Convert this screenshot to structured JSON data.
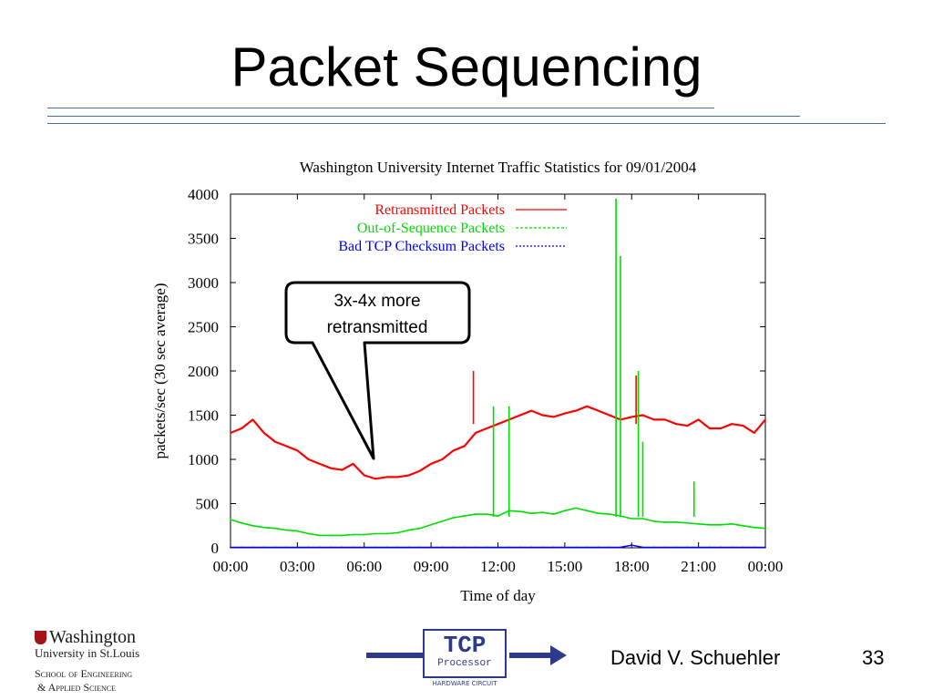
{
  "slide": {
    "title": "Packet Sequencing",
    "author": "David V. Schuehler",
    "page_number": "33"
  },
  "logos": {
    "washington": {
      "name": "Washington",
      "subname": "University in St.Louis",
      "line3": "School of Engineering",
      "line4": "& Applied Science"
    },
    "tcp": {
      "title": "TCP",
      "subtitle": "Processor",
      "caption": "HARDWARE CIRCUIT",
      "color": "#2d3a8c"
    }
  },
  "callout": {
    "line1": "3x-4x more",
    "line2": "retransmitted"
  },
  "chart_data": {
    "type": "line",
    "title": "Washington University Internet Traffic Statistics for 09/01/2004",
    "xlabel": "Time of day",
    "ylabel": "packets/sec (30 sec average)",
    "xlim": [
      0,
      24
    ],
    "ylim": [
      0,
      4000
    ],
    "x_ticks": [
      "00:00",
      "03:00",
      "06:00",
      "09:00",
      "12:00",
      "15:00",
      "18:00",
      "21:00",
      "00:00"
    ],
    "y_ticks": [
      "0",
      "500",
      "1000",
      "1500",
      "2000",
      "2500",
      "3000",
      "3500",
      "4000"
    ],
    "grid": false,
    "legend_position": "top-left",
    "x": [
      0,
      0.5,
      1,
      1.5,
      2,
      2.5,
      3,
      3.5,
      4,
      4.5,
      5,
      5.5,
      6,
      6.5,
      7,
      7.5,
      8,
      8.5,
      9,
      9.5,
      10,
      10.5,
      11,
      11.5,
      12,
      12.5,
      13,
      13.5,
      14,
      14.5,
      15,
      15.5,
      16,
      16.5,
      17,
      17.5,
      18,
      18.5,
      19,
      19.5,
      20,
      20.5,
      21,
      21.5,
      22,
      22.5,
      23,
      23.5,
      24
    ],
    "series": [
      {
        "name": "Retransmitted Packets",
        "color": "#ff0000",
        "style": "solid",
        "values": [
          1300,
          1350,
          1450,
          1300,
          1200,
          1150,
          1100,
          1000,
          950,
          900,
          880,
          950,
          820,
          780,
          800,
          800,
          820,
          870,
          950,
          1000,
          1100,
          1150,
          1300,
          1350,
          1400,
          1450,
          1500,
          1550,
          1500,
          1480,
          1520,
          1550,
          1600,
          1550,
          1500,
          1450,
          1480,
          1500,
          1450,
          1450,
          1400,
          1380,
          1450,
          1350,
          1350,
          1400,
          1380,
          1300,
          1450
        ]
      },
      {
        "name": "Out-of-Sequence Packets",
        "color": "#00dd00",
        "style": "dashed",
        "values": [
          320,
          280,
          250,
          230,
          220,
          200,
          190,
          160,
          140,
          140,
          140,
          150,
          150,
          160,
          160,
          170,
          200,
          220,
          260,
          300,
          340,
          360,
          380,
          380,
          360,
          420,
          410,
          390,
          400,
          380,
          420,
          450,
          420,
          390,
          380,
          360,
          330,
          330,
          300,
          290,
          290,
          280,
          270,
          260,
          260,
          270,
          250,
          230,
          220
        ]
      },
      {
        "name": "Bad TCP Checksum Packets",
        "color": "#0000ff",
        "style": "dotted",
        "values": [
          5,
          5,
          5,
          5,
          5,
          5,
          5,
          5,
          5,
          5,
          5,
          5,
          5,
          5,
          5,
          5,
          5,
          5,
          5,
          5,
          5,
          5,
          5,
          5,
          5,
          5,
          5,
          5,
          5,
          5,
          5,
          5,
          5,
          5,
          5,
          5,
          30,
          5,
          5,
          5,
          5,
          5,
          5,
          5,
          5,
          5,
          5,
          5,
          5
        ]
      }
    ],
    "spikes": [
      {
        "series": "Out-of-Sequence Packets",
        "x": 11.8,
        "y": 1600
      },
      {
        "series": "Out-of-Sequence Packets",
        "x": 12.5,
        "y": 1600
      },
      {
        "series": "Out-of-Sequence Packets",
        "x": 17.3,
        "y": 3950
      },
      {
        "series": "Out-of-Sequence Packets",
        "x": 17.5,
        "y": 3300
      },
      {
        "series": "Out-of-Sequence Packets",
        "x": 18.3,
        "y": 2000
      },
      {
        "series": "Out-of-Sequence Packets",
        "x": 18.5,
        "y": 1200
      },
      {
        "series": "Out-of-Sequence Packets",
        "x": 20.8,
        "y": 750
      },
      {
        "series": "Retransmitted Packets",
        "x": 10.9,
        "y": 2000
      },
      {
        "series": "Retransmitted Packets",
        "x": 18.2,
        "y": 1950
      }
    ]
  }
}
